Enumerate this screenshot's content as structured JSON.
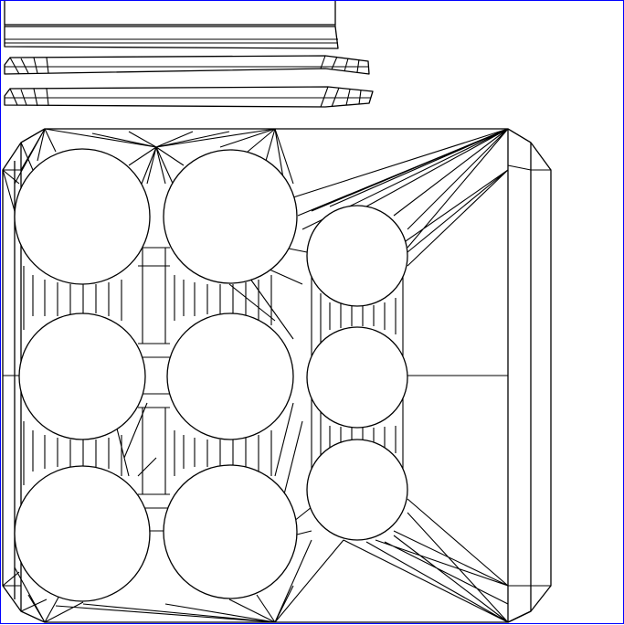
{
  "figure": {
    "kind": "uv-unwrap-wireframe",
    "background": "#ffffff",
    "line_color": "#000000",
    "frame_color": "#0000ff",
    "large_holes": 6,
    "small_holes": 3,
    "strips": 3
  }
}
